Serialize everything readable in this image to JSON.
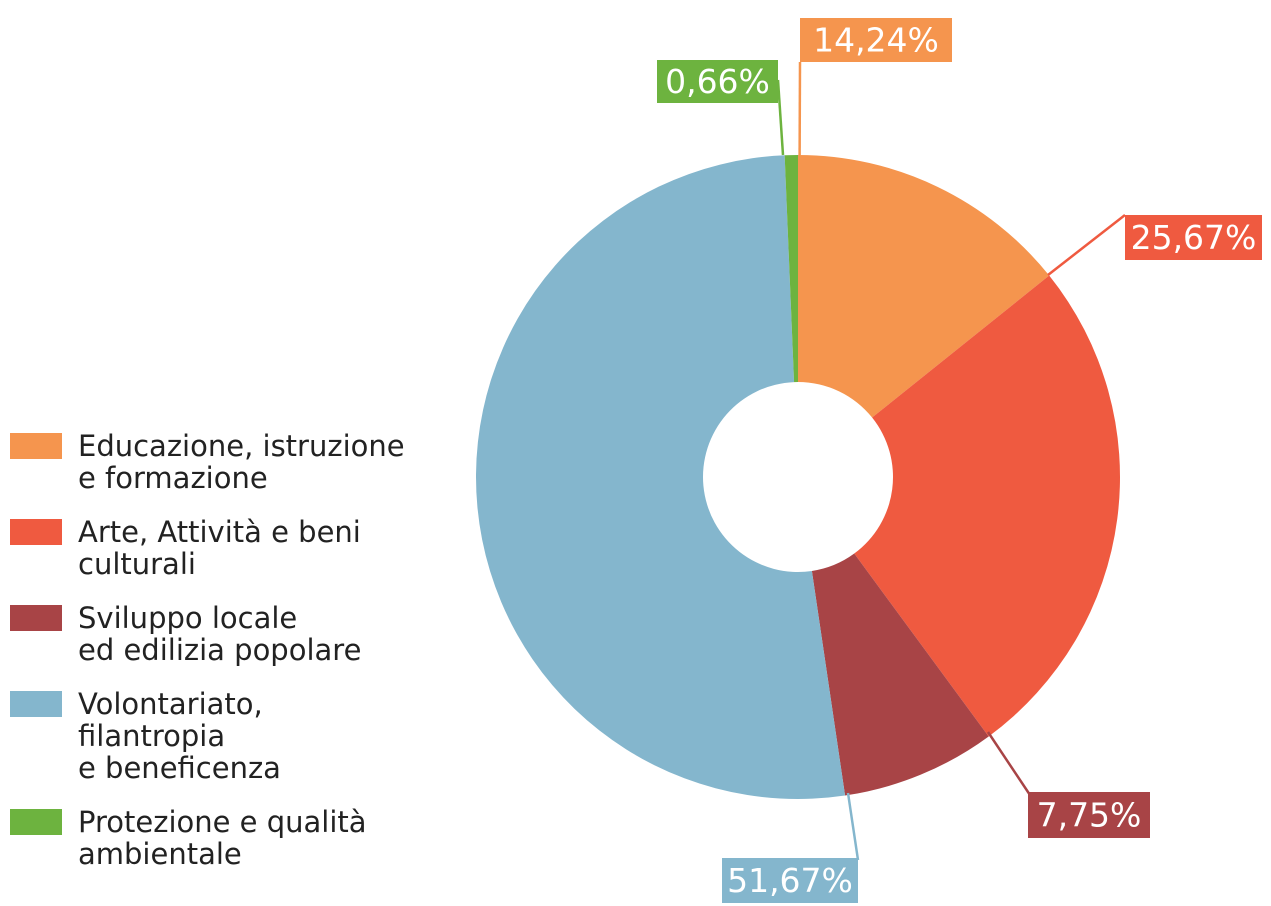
{
  "chart_data": {
    "type": "donut",
    "categories": [
      "Educazione, istruzione\ne formazione",
      "Arte, Attività e beni\nculturali",
      "Sviluppo locale\ned edilizia popolare",
      "Volontariato,\nfilantropia\ne beneficenza",
      "Protezione e qualità\nambientale"
    ],
    "values": [
      14.24,
      25.67,
      7.75,
      51.67,
      0.66
    ],
    "value_labels": [
      "14,24%",
      "25,67%",
      "7,75%",
      "51,67%",
      "0,66%"
    ],
    "colors": [
      "#f5954e",
      "#ef5a40",
      "#a84446",
      "#84b6cd",
      "#6db33f"
    ]
  }
}
